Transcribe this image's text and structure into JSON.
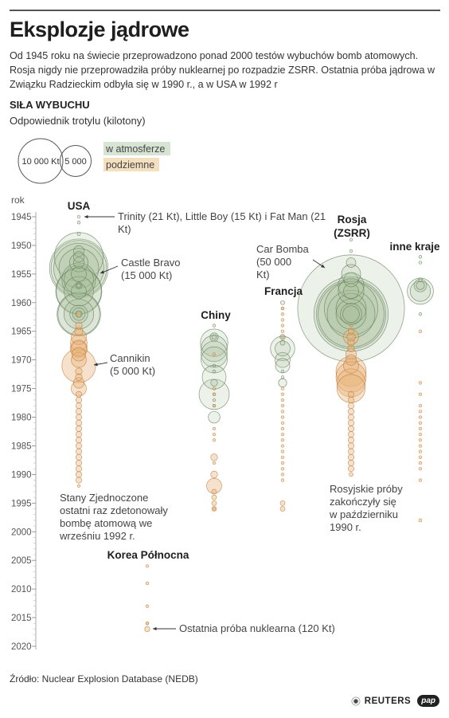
{
  "title": "Eksplozje jądrowe",
  "intro": "Od 1945 roku na świecie przeprowadzono ponad 2000 testów wybuchów bomb atomowych. Rosja nigdy nie przeprowadziła próby nuklearnej po rozpadzie ZSRR. Ostatnia próba jądrowa w Związku Radzieckim odbyła się w 1990 r., a w USA w 1992 r",
  "section_title": "SIŁA WYBUCHU",
  "section_subtitle": "Odpowiednik trotylu (kilotony)",
  "legend": {
    "sizes": [
      {
        "label": "10 000 Kt",
        "value": 10000
      },
      {
        "label": "5 000",
        "value": 5000
      }
    ],
    "types": [
      {
        "label": "w atmosferze",
        "color": "#c8d8c0"
      },
      {
        "label": "podziemne",
        "color": "#f0d2a4"
      }
    ]
  },
  "source": "Źródło: Nuclear Explosion Database (NEDB)",
  "logos": {
    "reuters": "REUTERS",
    "pap": "pap"
  },
  "colors": {
    "atmosphere_fill": "#a8bf9c",
    "atmosphere_stroke": "#5f7b56",
    "underground_fill": "#e8b47a",
    "underground_stroke": "#c27a35"
  },
  "chart_data": {
    "type": "scatter",
    "y_axis_label": "rok",
    "y_range": [
      1945,
      2020
    ],
    "y_ticks": [
      1945,
      1950,
      1955,
      1960,
      1965,
      1970,
      1975,
      1980,
      1985,
      1990,
      1995,
      2000,
      2005,
      2010,
      2015,
      2020
    ],
    "series": [
      {
        "name": "USA",
        "years": [
          1945,
          1992
        ],
        "atmospheric": [
          [
            1945,
            21
          ],
          [
            1946,
            23
          ],
          [
            1948,
            49
          ],
          [
            1951,
            500
          ],
          [
            1952,
            10400
          ],
          [
            1953,
            1500
          ],
          [
            1954,
            15000
          ],
          [
            1954,
            11000
          ],
          [
            1954,
            6900
          ],
          [
            1954,
            13500
          ],
          [
            1956,
            3800
          ],
          [
            1956,
            5000
          ],
          [
            1957,
            200
          ],
          [
            1958,
            9300
          ],
          [
            1958,
            8900
          ],
          [
            1958,
            3800
          ],
          [
            1962,
            8300
          ],
          [
            1962,
            3900
          ],
          [
            1962,
            7650
          ],
          [
            1962,
            1400
          ],
          [
            1962,
            700
          ],
          [
            1957,
            74
          ],
          [
            1955,
            1000
          ],
          [
            1953,
            500
          ],
          [
            1952,
            500
          ],
          [
            1962,
            200
          ],
          [
            1958,
            1000
          ]
        ],
        "underground": [
          [
            1962,
            100
          ],
          [
            1964,
            200
          ],
          [
            1966,
            1000
          ],
          [
            1967,
            1200
          ],
          [
            1968,
            1300
          ],
          [
            1968,
            1000
          ],
          [
            1969,
            800
          ],
          [
            1970,
            1000
          ],
          [
            1971,
            5000
          ],
          [
            1972,
            200
          ],
          [
            1973,
            200
          ],
          [
            1974,
            500
          ],
          [
            1975,
            1000
          ],
          [
            1976,
            150
          ],
          [
            1977,
            150
          ],
          [
            1978,
            150
          ],
          [
            1979,
            150
          ],
          [
            1980,
            150
          ],
          [
            1981,
            150
          ],
          [
            1982,
            150
          ],
          [
            1983,
            150
          ],
          [
            1984,
            150
          ],
          [
            1985,
            150
          ],
          [
            1986,
            150
          ],
          [
            1987,
            150
          ],
          [
            1988,
            150
          ],
          [
            1989,
            150
          ],
          [
            1990,
            150
          ],
          [
            1991,
            150
          ],
          [
            1992,
            20
          ],
          [
            1965,
            300
          ]
        ]
      },
      {
        "name": "Chiny",
        "years": [
          1964,
          1996
        ],
        "atmospheric": [
          [
            1964,
            22
          ],
          [
            1966,
            300
          ],
          [
            1967,
            3300
          ],
          [
            1968,
            3000
          ],
          [
            1969,
            3000
          ],
          [
            1970,
            3000
          ],
          [
            1971,
            20
          ],
          [
            1973,
            2500
          ],
          [
            1974,
            200
          ],
          [
            1976,
            4000
          ],
          [
            1977,
            20
          ],
          [
            1978,
            20
          ],
          [
            1980,
            600
          ],
          [
            1966,
            100
          ],
          [
            1972,
            20
          ],
          [
            1976,
            20
          ]
        ],
        "underground": [
          [
            1969,
            20
          ],
          [
            1975,
            20
          ],
          [
            1976,
            20
          ],
          [
            1978,
            20
          ],
          [
            1982,
            20
          ],
          [
            1983,
            20
          ],
          [
            1984,
            20
          ],
          [
            1987,
            200
          ],
          [
            1988,
            20
          ],
          [
            1990,
            200
          ],
          [
            1992,
            1000
          ],
          [
            1993,
            100
          ],
          [
            1994,
            100
          ],
          [
            1995,
            100
          ],
          [
            1996,
            100
          ],
          [
            1996,
            20
          ]
        ]
      },
      {
        "name": "Francja",
        "years": [
          1960,
          1996
        ],
        "atmospheric": [
          [
            1960,
            70
          ],
          [
            1961,
            20
          ],
          [
            1966,
            120
          ],
          [
            1967,
            100
          ],
          [
            1968,
            2600
          ],
          [
            1968,
            1000
          ],
          [
            1970,
            1000
          ],
          [
            1971,
            900
          ],
          [
            1972,
            20
          ],
          [
            1973,
            20
          ],
          [
            1974,
            300
          ]
        ],
        "underground": [
          [
            1961,
            20
          ],
          [
            1962,
            20
          ],
          [
            1963,
            20
          ],
          [
            1964,
            20
          ],
          [
            1965,
            20
          ],
          [
            1966,
            20
          ],
          [
            1975,
            20
          ],
          [
            1976,
            20
          ],
          [
            1977,
            20
          ],
          [
            1978,
            20
          ],
          [
            1979,
            20
          ],
          [
            1980,
            20
          ],
          [
            1981,
            20
          ],
          [
            1982,
            20
          ],
          [
            1983,
            20
          ],
          [
            1984,
            20
          ],
          [
            1985,
            20
          ],
          [
            1986,
            20
          ],
          [
            1987,
            20
          ],
          [
            1988,
            20
          ],
          [
            1989,
            20
          ],
          [
            1990,
            20
          ],
          [
            1991,
            20
          ],
          [
            1995,
            100
          ],
          [
            1996,
            100
          ]
        ]
      },
      {
        "name": "Rosja (ZSRR)",
        "years": [
          1949,
          1990
        ],
        "atmospheric": [
          [
            1949,
            22
          ],
          [
            1951,
            38
          ],
          [
            1953,
            400
          ],
          [
            1955,
            1600
          ],
          [
            1956,
            900
          ],
          [
            1957,
            2900
          ],
          [
            1958,
            2900
          ],
          [
            1961,
            50000
          ],
          [
            1961,
            12500
          ],
          [
            1962,
            24200
          ],
          [
            1962,
            21100
          ],
          [
            1962,
            19100
          ],
          [
            1962,
            10000
          ],
          [
            1961,
            4000
          ],
          [
            1962,
            4000
          ],
          [
            1962,
            2000
          ],
          [
            1958,
            1000
          ],
          [
            1962,
            1200
          ]
        ],
        "underground": [
          [
            1964,
            20
          ],
          [
            1965,
            140
          ],
          [
            1966,
            1000
          ],
          [
            1967,
            200
          ],
          [
            1968,
            200
          ],
          [
            1969,
            500
          ],
          [
            1970,
            500
          ],
          [
            1971,
            1000
          ],
          [
            1972,
            4000
          ],
          [
            1973,
            4000
          ],
          [
            1974,
            3500
          ],
          [
            1975,
            3500
          ],
          [
            1976,
            150
          ],
          [
            1977,
            150
          ],
          [
            1978,
            150
          ],
          [
            1979,
            150
          ],
          [
            1980,
            150
          ],
          [
            1981,
            150
          ],
          [
            1982,
            150
          ],
          [
            1983,
            150
          ],
          [
            1984,
            150
          ],
          [
            1985,
            150
          ],
          [
            1986,
            150
          ],
          [
            1987,
            150
          ],
          [
            1988,
            150
          ],
          [
            1989,
            150
          ],
          [
            1990,
            70
          ],
          [
            1966,
            300
          ]
        ]
      },
      {
        "name": "inne kraje",
        "years": [
          1952,
          1998
        ],
        "atmospheric": [
          [
            1952,
            25
          ],
          [
            1953,
            10
          ],
          [
            1956,
            60
          ],
          [
            1957,
            300
          ],
          [
            1958,
            3000
          ],
          [
            1958,
            1800
          ],
          [
            1957,
            700
          ],
          [
            1962,
            20
          ]
        ],
        "underground": [
          [
            1965,
            20
          ],
          [
            1974,
            12
          ],
          [
            1976,
            20
          ],
          [
            1978,
            20
          ],
          [
            1979,
            20
          ],
          [
            1980,
            20
          ],
          [
            1981,
            20
          ],
          [
            1982,
            20
          ],
          [
            1983,
            20
          ],
          [
            1984,
            20
          ],
          [
            1985,
            20
          ],
          [
            1986,
            20
          ],
          [
            1987,
            20
          ],
          [
            1988,
            20
          ],
          [
            1989,
            20
          ],
          [
            1991,
            20
          ],
          [
            1998,
            45
          ]
        ]
      },
      {
        "name": "Korea Północna",
        "years": [
          2006,
          2017
        ],
        "atmospheric": [],
        "underground": [
          [
            2006,
            1
          ],
          [
            2009,
            4
          ],
          [
            2013,
            10
          ],
          [
            2016,
            10
          ],
          [
            2016,
            20
          ],
          [
            2017,
            120
          ]
        ]
      }
    ],
    "annotations": [
      {
        "text": "Trinity (21 Kt), Little Boy (15 Kt) i Fat Man (21 Kt)",
        "series": "USA",
        "year": 1945
      },
      {
        "text": "Castle Bravo (15 000 Kt)",
        "series": "USA",
        "year": 1954
      },
      {
        "text": "Cannikin (5 000 Kt)",
        "series": "USA",
        "year": 1971
      },
      {
        "text": "Car Bomba (50 000 Kt)",
        "series": "Rosja (ZSRR)",
        "year": 1961
      },
      {
        "text": "Stany Zjednoczone ostatni raz zdetonowały bombę atomową we wrześniu 1992 r.",
        "series": "USA",
        "year": 1992
      },
      {
        "text": "Rosyjskie próby zakończyły się w październiku 1990 r.",
        "series": "Rosja (ZSRR)",
        "year": 1990
      },
      {
        "text": "Ostatnia próba nuklearna (120 Kt)",
        "series": "Korea Północna",
        "year": 2017
      }
    ]
  }
}
